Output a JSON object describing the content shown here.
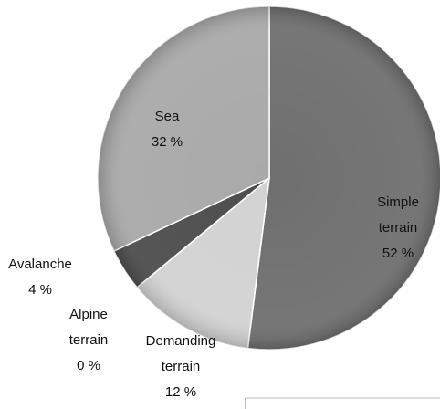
{
  "chart_data": {
    "type": "pie",
    "categories": [
      "Simple terrain",
      "Demanding terrain",
      "Alpine terrain",
      "Avalanche",
      "Sea"
    ],
    "values": [
      52,
      12,
      0,
      4,
      32
    ],
    "value_labels": [
      "52 %",
      "12 %",
      "0 %",
      "4 %",
      "32 %"
    ],
    "colors": [
      "#6f6f6f",
      "#d2d2d2",
      "#bcbcbc",
      "#4d4d4d",
      "#a9a9a9"
    ]
  }
}
